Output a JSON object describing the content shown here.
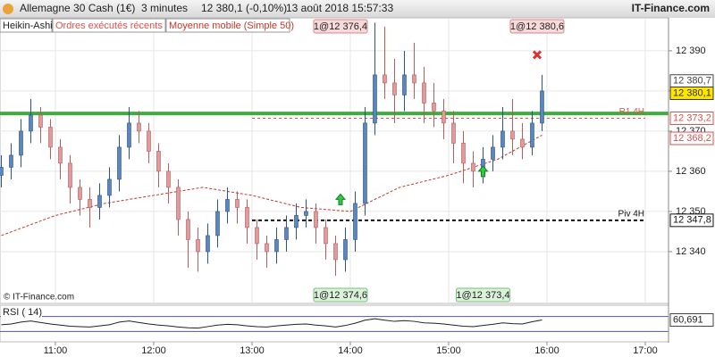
{
  "header": {
    "instrument": "Allemagne 30 Cash (1€)",
    "period": "3 minutes",
    "quote": "12 380,1 (-0,10%)",
    "timestamp": "13 août 2018 15:57:33",
    "brand": "IT-Finance.com"
  },
  "tabs": [
    "Heikin-Ashi",
    "Ordres exécutés récents"
  ],
  "watermark": "© IT-Finance.com",
  "chart_data": {
    "type": "candlestick",
    "up_color": "#5b87c0",
    "down_color": "#e39a9a",
    "x": [
      627,
      633,
      639,
      645,
      651,
      657,
      663,
      669,
      675,
      681,
      687,
      693,
      699,
      705,
      711,
      717,
      723,
      729,
      735,
      741,
      747,
      753,
      759,
      765,
      771,
      777,
      783,
      789,
      795,
      801,
      807,
      813,
      819,
      825,
      831,
      837,
      843,
      849,
      855,
      861,
      867,
      873,
      879,
      885,
      891,
      897,
      903,
      909,
      915,
      921,
      927,
      933,
      939,
      945,
      951,
      957
    ],
    "open": [
      12359,
      12361,
      12364,
      12370,
      12374,
      12371,
      12366,
      12362,
      12356,
      12353,
      12351,
      12354,
      12358,
      12366,
      12372,
      12370,
      12365,
      12360,
      12356,
      12348,
      12343,
      12340,
      12344,
      12350,
      12353,
      12351,
      12346,
      12342,
      12340,
      12343,
      12346,
      12349,
      12350,
      12346,
      12342,
      12338,
      12343,
      12352,
      12372,
      12384,
      12382,
      12379,
      12384,
      12382,
      12377,
      12375,
      12372,
      12367,
      12362,
      12360,
      12363,
      12366,
      12370,
      12368,
      12366,
      12372
    ],
    "high": [
      12364,
      12367,
      12373,
      12378,
      12376,
      12373,
      12368,
      12364,
      12358,
      12356,
      12357,
      12361,
      12369,
      12376,
      12375,
      12372,
      12367,
      12362,
      12358,
      12350,
      12346,
      12347,
      12353,
      12356,
      12355,
      12353,
      12348,
      12344,
      12346,
      12349,
      12352,
      12353,
      12352,
      12348,
      12344,
      12346,
      12355,
      12376,
      12397,
      12396,
      12388,
      12390,
      12392,
      12386,
      12382,
      12378,
      12375,
      12370,
      12365,
      12366,
      12369,
      12376,
      12378,
      12372,
      12375,
      12384
    ],
    "low": [
      12356,
      12358,
      12361,
      12367,
      12367,
      12363,
      12358,
      12352,
      12349,
      12346,
      12348,
      12351,
      12355,
      12363,
      12367,
      12362,
      12356,
      12352,
      12344,
      12336,
      12335,
      12337,
      12341,
      12347,
      12347,
      12342,
      12338,
      12336,
      12337,
      12340,
      12343,
      12346,
      12342,
      12338,
      12334,
      12335,
      12340,
      12349,
      12369,
      12378,
      12372,
      12375,
      12378,
      12372,
      12371,
      12368,
      12362,
      12357,
      12356,
      12357,
      12360,
      12363,
      12364,
      12363,
      12364,
      12370
    ],
    "close": [
      12361,
      12364,
      12370,
      12374,
      12371,
      12366,
      12362,
      12356,
      12353,
      12351,
      12354,
      12358,
      12366,
      12372,
      12370,
      12365,
      12360,
      12356,
      12348,
      12343,
      12340,
      12344,
      12350,
      12353,
      12351,
      12346,
      12342,
      12340,
      12343,
      12346,
      12349,
      12350,
      12346,
      12342,
      12338,
      12343,
      12352,
      12372,
      12384,
      12382,
      12379,
      12384,
      12382,
      12377,
      12375,
      12372,
      12367,
      12362,
      12360,
      12363,
      12366,
      12370,
      12368,
      12366,
      12372,
      12380
    ],
    "moving_average": {
      "name": "Moyenne mobile (Simple 50)",
      "color": "#c0392b",
      "x": [
        627,
        660,
        690,
        720,
        750,
        780,
        810,
        840,
        870,
        900,
        930,
        957
      ],
      "values": [
        12344,
        12349,
        12352,
        12354,
        12356,
        12354,
        12351,
        12350,
        12356,
        12359,
        12363,
        12369
      ]
    },
    "xlim": [
      626.2,
      1034.2
    ],
    "xticks": [
      {
        "value": 660,
        "label": "11:00"
      },
      {
        "value": 720,
        "label": "12:00"
      },
      {
        "value": 780,
        "label": "13:00"
      },
      {
        "value": 840,
        "label": "14:00"
      },
      {
        "value": 900,
        "label": "15:00"
      },
      {
        "value": 960,
        "label": "16:00"
      },
      {
        "value": 1020,
        "label": "17:00"
      }
    ],
    "ylim": [
      12327.1,
      12398.2
    ],
    "yticks": [
      {
        "value": 12390,
        "label": "12 390"
      },
      {
        "value": 12380,
        "label": "12 380"
      },
      {
        "value": 12370,
        "label": "12 370"
      },
      {
        "value": 12360,
        "label": "12 360"
      },
      {
        "value": 12350,
        "label": "12 350"
      },
      {
        "value": 12340,
        "label": "12 340"
      }
    ],
    "grid": true,
    "levels": [
      {
        "value": 12374.4,
        "color": "#3cae3c"
      },
      {
        "label": "R1 4H",
        "value": 12373.2,
        "color": "#d9534f",
        "from": 780
      },
      {
        "label": "Piv 4H",
        "value": 12347.8,
        "color": "#111111",
        "from": 780
      }
    ],
    "price_tags": [
      {
        "value": 12380.7,
        "label": "12 380,7",
        "color": "#444444",
        "fill": "#ffffff"
      },
      {
        "value": 12380.1,
        "label": "12 380,1",
        "color": "#333333",
        "fill": "#ffe600"
      },
      {
        "value": 12373.2,
        "label": "12 373,2",
        "color": "#d9534f",
        "fill": "#ffffff"
      },
      {
        "value": 12368.2,
        "label": "12 368,2",
        "color": "#d9534f",
        "fill": "#ffffff"
      },
      {
        "value": 12347.8,
        "label": "12 347,8",
        "color": "#111111",
        "fill": "#ffffff"
      }
    ],
    "trades": [
      {
        "label": "1@12 376,4",
        "x": 834,
        "side": "sell"
      },
      {
        "label": "1@12 380,6",
        "x": 954,
        "side": "sell"
      },
      {
        "label": "1@12 374,6",
        "x": 834,
        "side": "buy"
      },
      {
        "label": "1@12 373,4",
        "x": 921,
        "side": "buy"
      }
    ],
    "markers": [
      {
        "kind": "buy",
        "x": 834,
        "y": 12353
      },
      {
        "kind": "buy",
        "x": 921,
        "y": 12360
      },
      {
        "kind": "exit",
        "x": 954,
        "y": 12389
      }
    ],
    "rsi": {
      "name": "RSI ( 14)",
      "ylim": [
        0,
        100
      ],
      "levels": [
        30,
        70
      ],
      "color": "#222222",
      "values": [
        48,
        50,
        55,
        58,
        54,
        50,
        47,
        44,
        43,
        42,
        45,
        48,
        55,
        58,
        54,
        50,
        47,
        45,
        42,
        40,
        39,
        43,
        47,
        49,
        48,
        45,
        43,
        42,
        45,
        47,
        49,
        50,
        47,
        45,
        42,
        46,
        52,
        60,
        64,
        60,
        57,
        59,
        57,
        53,
        52,
        50,
        47,
        44,
        43,
        46,
        49,
        53,
        51,
        50,
        56,
        60.691
      ],
      "tag": {
        "value": 60.691,
        "label": "60,691"
      }
    }
  }
}
